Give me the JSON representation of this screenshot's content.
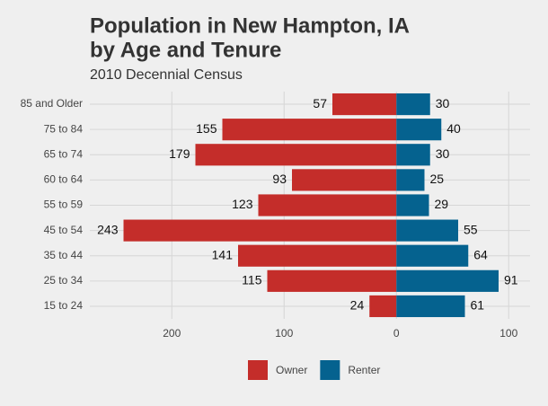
{
  "chart_data": {
    "type": "pyramid",
    "title": [
      "Population in New Hampton, IA",
      "by Age and Tenure"
    ],
    "subtitle": "2010 Decennial Census",
    "categories": [
      "85 and Older",
      "75 to 84",
      "65 to 74",
      "60 to 64",
      "55 to 59",
      "45 to 54",
      "35 to 44",
      "25 to 34",
      "15 to 24"
    ],
    "series": [
      {
        "name": "Owner",
        "color": "#c42d2a",
        "values": [
          -57,
          -155,
          -179,
          -93,
          -123,
          -243,
          -141,
          -115,
          -24
        ],
        "value_labels": [
          "57",
          "155",
          "179",
          "93",
          "123",
          "243",
          "141",
          "115",
          "24"
        ]
      },
      {
        "name": "Renter",
        "color": "#05628f",
        "values": [
          30,
          40,
          30,
          25,
          29,
          55,
          64,
          91,
          61
        ]
      }
    ],
    "xlim": [
      -273,
      119
    ],
    "xticks": [
      {
        "value": -200,
        "label": "200"
      },
      {
        "value": -100,
        "label": "100"
      },
      0,
      100
    ],
    "grid": true,
    "legend": "bottom"
  }
}
